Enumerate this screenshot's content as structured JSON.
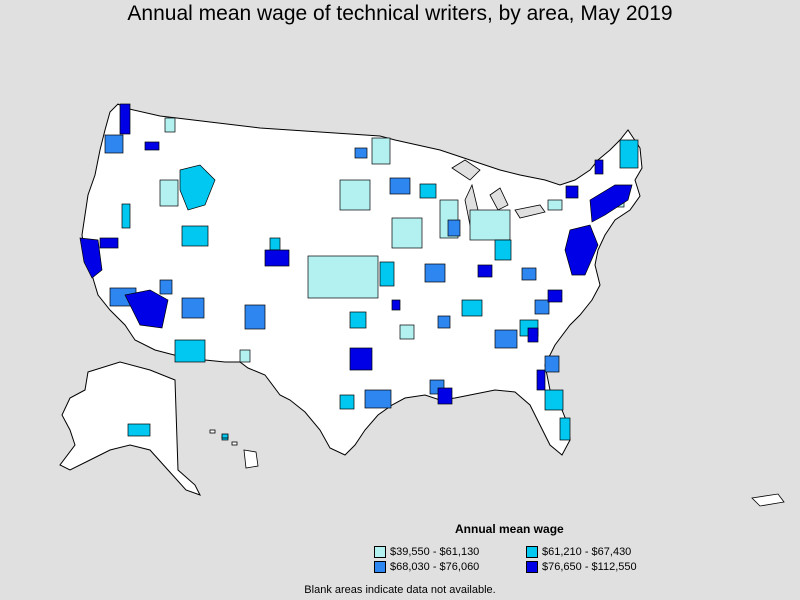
{
  "title": "Annual mean wage of technical writers, by area, May 2019",
  "legend": {
    "title": "Annual mean wage",
    "items": [
      {
        "label": "$39,550 - $61,130",
        "color": "#b3f0f0"
      },
      {
        "label": "$68,030 - $76,060",
        "color": "#2e86f0"
      },
      {
        "label": "$61,210 - $67,430",
        "color": "#00c8f0"
      },
      {
        "label": "$76,650 - $112,550",
        "color": "#0000e6"
      }
    ]
  },
  "footnote": "Blank areas indicate data not available.",
  "colors": {
    "background": "#e0e0e0",
    "no_data": "#ffffff",
    "outline": "#000000"
  }
}
